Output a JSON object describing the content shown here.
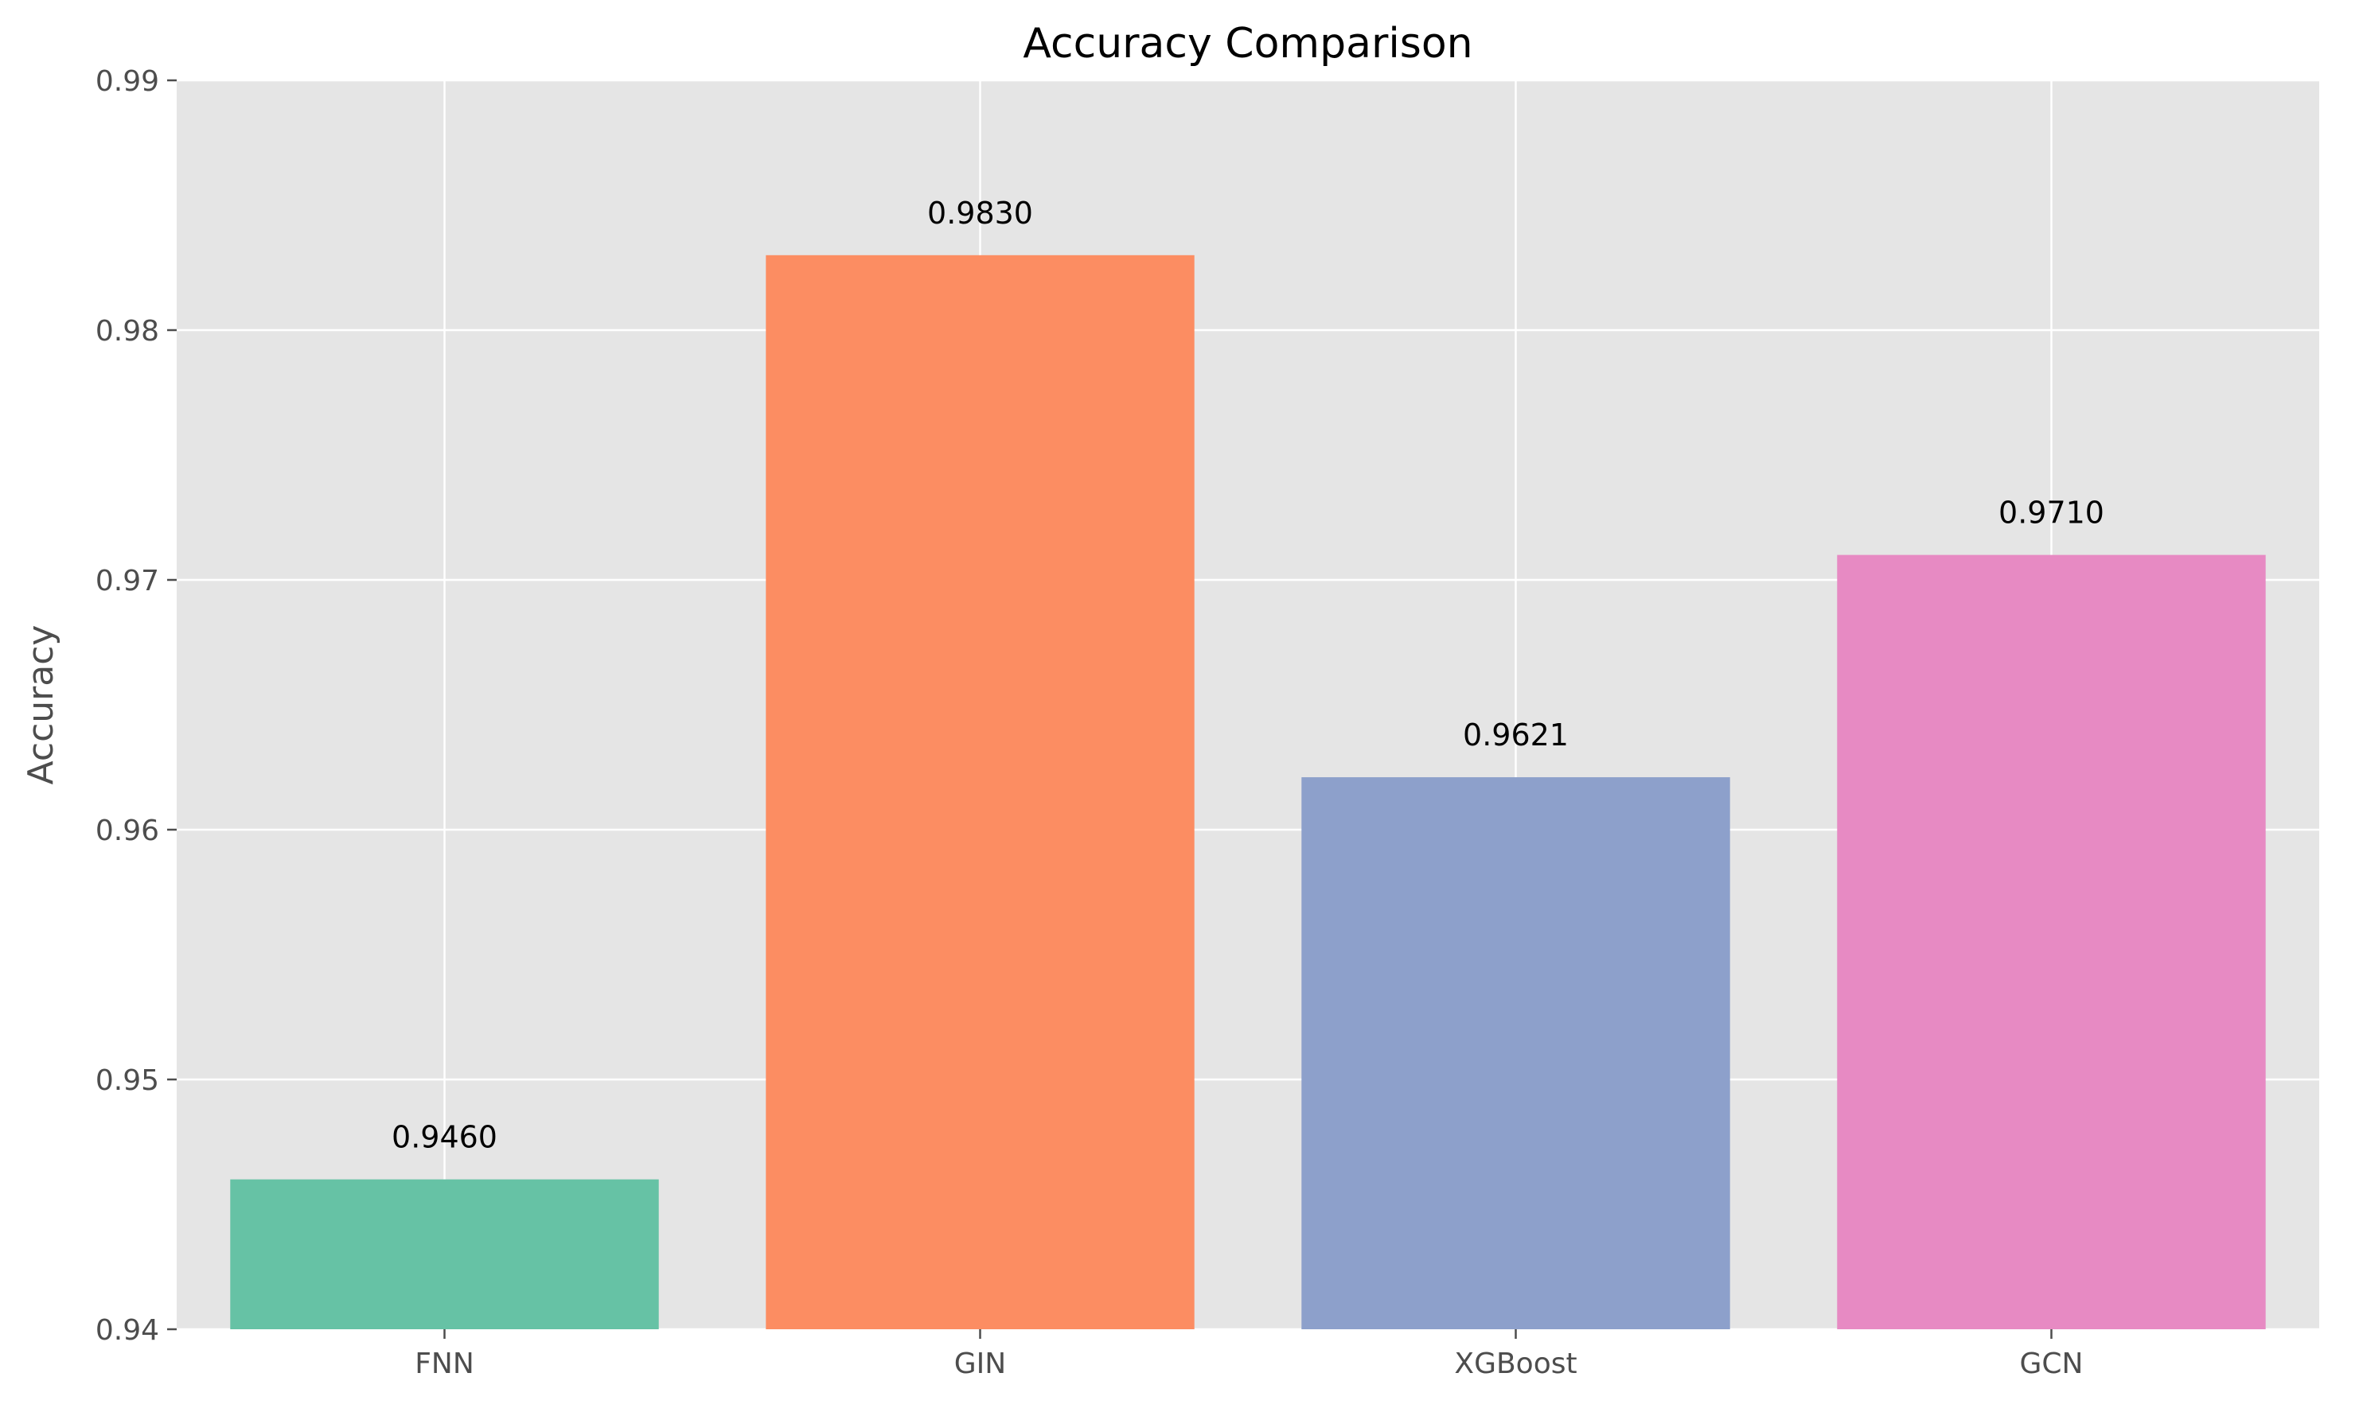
{
  "chart_data": {
    "type": "bar",
    "title": "Accuracy Comparison",
    "xlabel": "",
    "ylabel": "Accuracy",
    "categories": [
      "FNN",
      "GIN",
      "XGBoost",
      "GCN"
    ],
    "values": [
      0.946,
      0.983,
      0.9621,
      0.971
    ],
    "value_labels": [
      "0.9460",
      "0.9830",
      "0.9621",
      "0.9710"
    ],
    "colors": [
      "#66c2a5",
      "#fc8d62",
      "#8da0cb",
      "#e78ac3"
    ],
    "ylim": [
      0.94,
      0.99
    ],
    "yticks": [
      0.94,
      0.95,
      0.96,
      0.97,
      0.98,
      0.99
    ],
    "ytick_labels": [
      "0.94",
      "0.95",
      "0.96",
      "0.97",
      "0.98",
      "0.99"
    ],
    "grid": true,
    "background_color": "#e5e5e5",
    "grid_color": "#ffffff"
  }
}
